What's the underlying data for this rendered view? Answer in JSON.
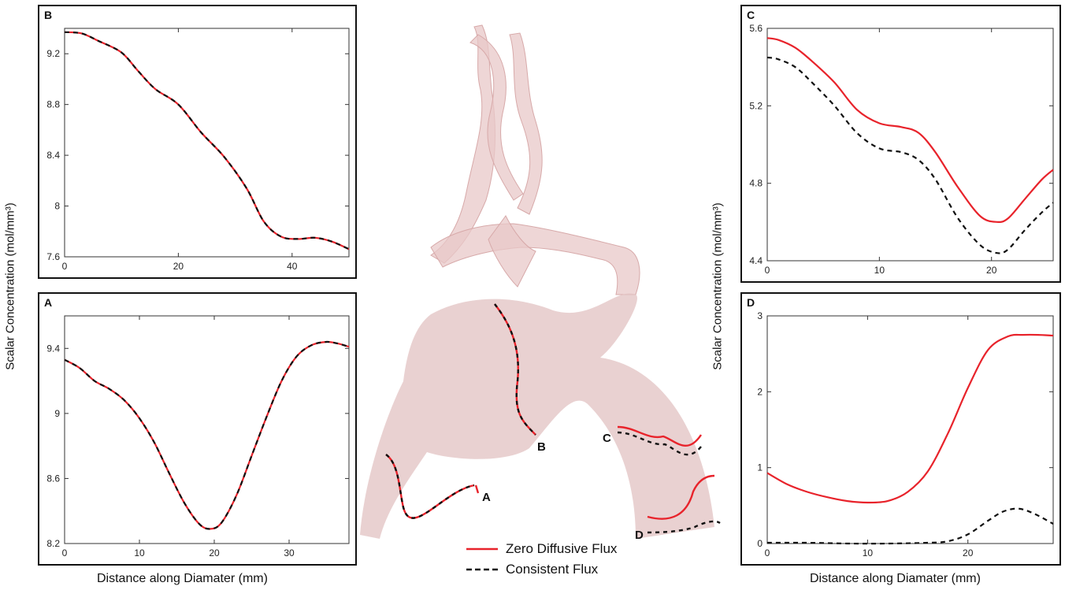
{
  "figure": {
    "ylabel": "Scalar Concentration (mol/mm³)",
    "xlabel": "Distance along Diamater (mm)",
    "legend": [
      {
        "label": "Zero Diffusive Flux",
        "color": "#e8232b",
        "style": "solid"
      },
      {
        "label": "Consistent Flux",
        "color": "#111111",
        "style": "dashed"
      }
    ],
    "section_labels": [
      "A",
      "B",
      "C",
      "D"
    ]
  },
  "chart_data": [
    {
      "id": "B",
      "type": "line",
      "letter": "B",
      "xlim": [
        0,
        50
      ],
      "ylim": [
        7.6,
        9.4
      ],
      "xticks": [
        0,
        20,
        40
      ],
      "yticks": [
        7.6,
        8,
        8.4,
        8.8,
        9.2
      ],
      "ytick_labels": [
        "7.6",
        "8",
        "8.4",
        "8.8",
        "9.2"
      ],
      "series": [
        {
          "name": "Zero Diffusive Flux",
          "color": "#e8232b",
          "style": "solid",
          "x": [
            0,
            3,
            6,
            10,
            13,
            16,
            20,
            24,
            28,
            32,
            35,
            38,
            41,
            44,
            47,
            50
          ],
          "y": [
            9.37,
            9.36,
            9.3,
            9.21,
            9.06,
            8.92,
            8.8,
            8.58,
            8.39,
            8.14,
            7.88,
            7.76,
            7.74,
            7.75,
            7.72,
            7.66
          ]
        },
        {
          "name": "Consistent Flux",
          "color": "#111111",
          "style": "dashed",
          "x": [
            0,
            3,
            6,
            10,
            13,
            16,
            20,
            24,
            28,
            32,
            35,
            38,
            41,
            44,
            47,
            50
          ],
          "y": [
            9.37,
            9.36,
            9.3,
            9.21,
            9.06,
            8.92,
            8.8,
            8.58,
            8.39,
            8.14,
            7.88,
            7.76,
            7.74,
            7.75,
            7.72,
            7.66
          ]
        }
      ]
    },
    {
      "id": "A",
      "type": "line",
      "letter": "A",
      "xlim": [
        0,
        38
      ],
      "ylim": [
        8.2,
        9.6
      ],
      "xticks": [
        0,
        10,
        20,
        30
      ],
      "yticks": [
        8.2,
        8.6,
        9,
        9.4
      ],
      "ytick_labels": [
        "8.2",
        "8.6",
        "9",
        "9.4"
      ],
      "series": [
        {
          "name": "Zero Diffusive Flux",
          "color": "#e8232b",
          "style": "solid",
          "x": [
            0,
            2,
            4,
            6,
            8,
            10,
            12,
            14,
            16,
            18,
            19.5,
            21,
            23,
            25,
            27,
            29,
            31,
            33,
            35,
            36.5,
            38
          ],
          "y": [
            9.33,
            9.28,
            9.2,
            9.15,
            9.08,
            8.97,
            8.82,
            8.63,
            8.45,
            8.32,
            8.29,
            8.33,
            8.5,
            8.74,
            8.98,
            9.2,
            9.35,
            9.42,
            9.44,
            9.43,
            9.41
          ]
        },
        {
          "name": "Consistent Flux",
          "color": "#111111",
          "style": "dashed",
          "x": [
            0,
            2,
            4,
            6,
            8,
            10,
            12,
            14,
            16,
            18,
            19.5,
            21,
            23,
            25,
            27,
            29,
            31,
            33,
            35,
            36.5,
            38
          ],
          "y": [
            9.33,
            9.28,
            9.2,
            9.15,
            9.08,
            8.97,
            8.82,
            8.63,
            8.45,
            8.32,
            8.29,
            8.33,
            8.5,
            8.74,
            8.98,
            9.2,
            9.35,
            9.42,
            9.44,
            9.43,
            9.41
          ]
        }
      ]
    },
    {
      "id": "C",
      "type": "line",
      "letter": "C",
      "xlim": [
        0,
        25.5
      ],
      "ylim": [
        4.4,
        5.6
      ],
      "xticks": [
        0,
        10,
        20
      ],
      "yticks": [
        4.4,
        4.8,
        5.2,
        5.6
      ],
      "ytick_labels": [
        "4.4",
        "4.8",
        "5.2",
        "5.6"
      ],
      "series": [
        {
          "name": "Zero Diffusive Flux",
          "color": "#e8232b",
          "style": "solid",
          "x": [
            0,
            1,
            2.5,
            4,
            6,
            8,
            10,
            12,
            13.5,
            15,
            17,
            19,
            20.5,
            21.5,
            23,
            24.5,
            25.5
          ],
          "y": [
            5.55,
            5.54,
            5.5,
            5.43,
            5.32,
            5.18,
            5.11,
            5.09,
            5.06,
            4.96,
            4.78,
            4.63,
            4.6,
            4.62,
            4.72,
            4.82,
            4.87
          ]
        },
        {
          "name": "Consistent Flux",
          "color": "#111111",
          "style": "dashed",
          "x": [
            0,
            1,
            2.5,
            4,
            6,
            8,
            10,
            12,
            13.5,
            15,
            17,
            19,
            20.5,
            21.5,
            23,
            24.5,
            25.5
          ],
          "y": [
            5.45,
            5.44,
            5.4,
            5.32,
            5.2,
            5.06,
            4.98,
            4.96,
            4.92,
            4.82,
            4.62,
            4.48,
            4.44,
            4.46,
            4.56,
            4.65,
            4.7
          ]
        }
      ]
    },
    {
      "id": "D",
      "type": "line",
      "letter": "D",
      "xlim": [
        0,
        28.5
      ],
      "ylim": [
        0,
        3
      ],
      "xticks": [
        0,
        10,
        20
      ],
      "yticks": [
        0,
        1,
        2,
        3
      ],
      "ytick_labels": [
        "0",
        "1",
        "2",
        "3"
      ],
      "series": [
        {
          "name": "Zero Diffusive Flux",
          "color": "#e8232b",
          "style": "solid",
          "x": [
            0,
            2,
            4,
            6,
            8,
            10,
            12,
            14,
            16,
            18,
            20,
            22,
            24,
            25.5,
            27,
            28.5
          ],
          "y": [
            0.93,
            0.78,
            0.68,
            0.61,
            0.56,
            0.54,
            0.56,
            0.68,
            0.95,
            1.45,
            2.05,
            2.55,
            2.73,
            2.75,
            2.75,
            2.74
          ]
        },
        {
          "name": "Consistent Flux",
          "color": "#111111",
          "style": "dashed",
          "x": [
            0,
            4,
            8,
            12,
            16,
            18,
            20,
            22,
            23.5,
            25,
            26.5,
            28.5
          ],
          "y": [
            0.01,
            0.01,
            0.0,
            0.0,
            0.01,
            0.03,
            0.12,
            0.3,
            0.42,
            0.46,
            0.4,
            0.26
          ]
        }
      ]
    }
  ]
}
